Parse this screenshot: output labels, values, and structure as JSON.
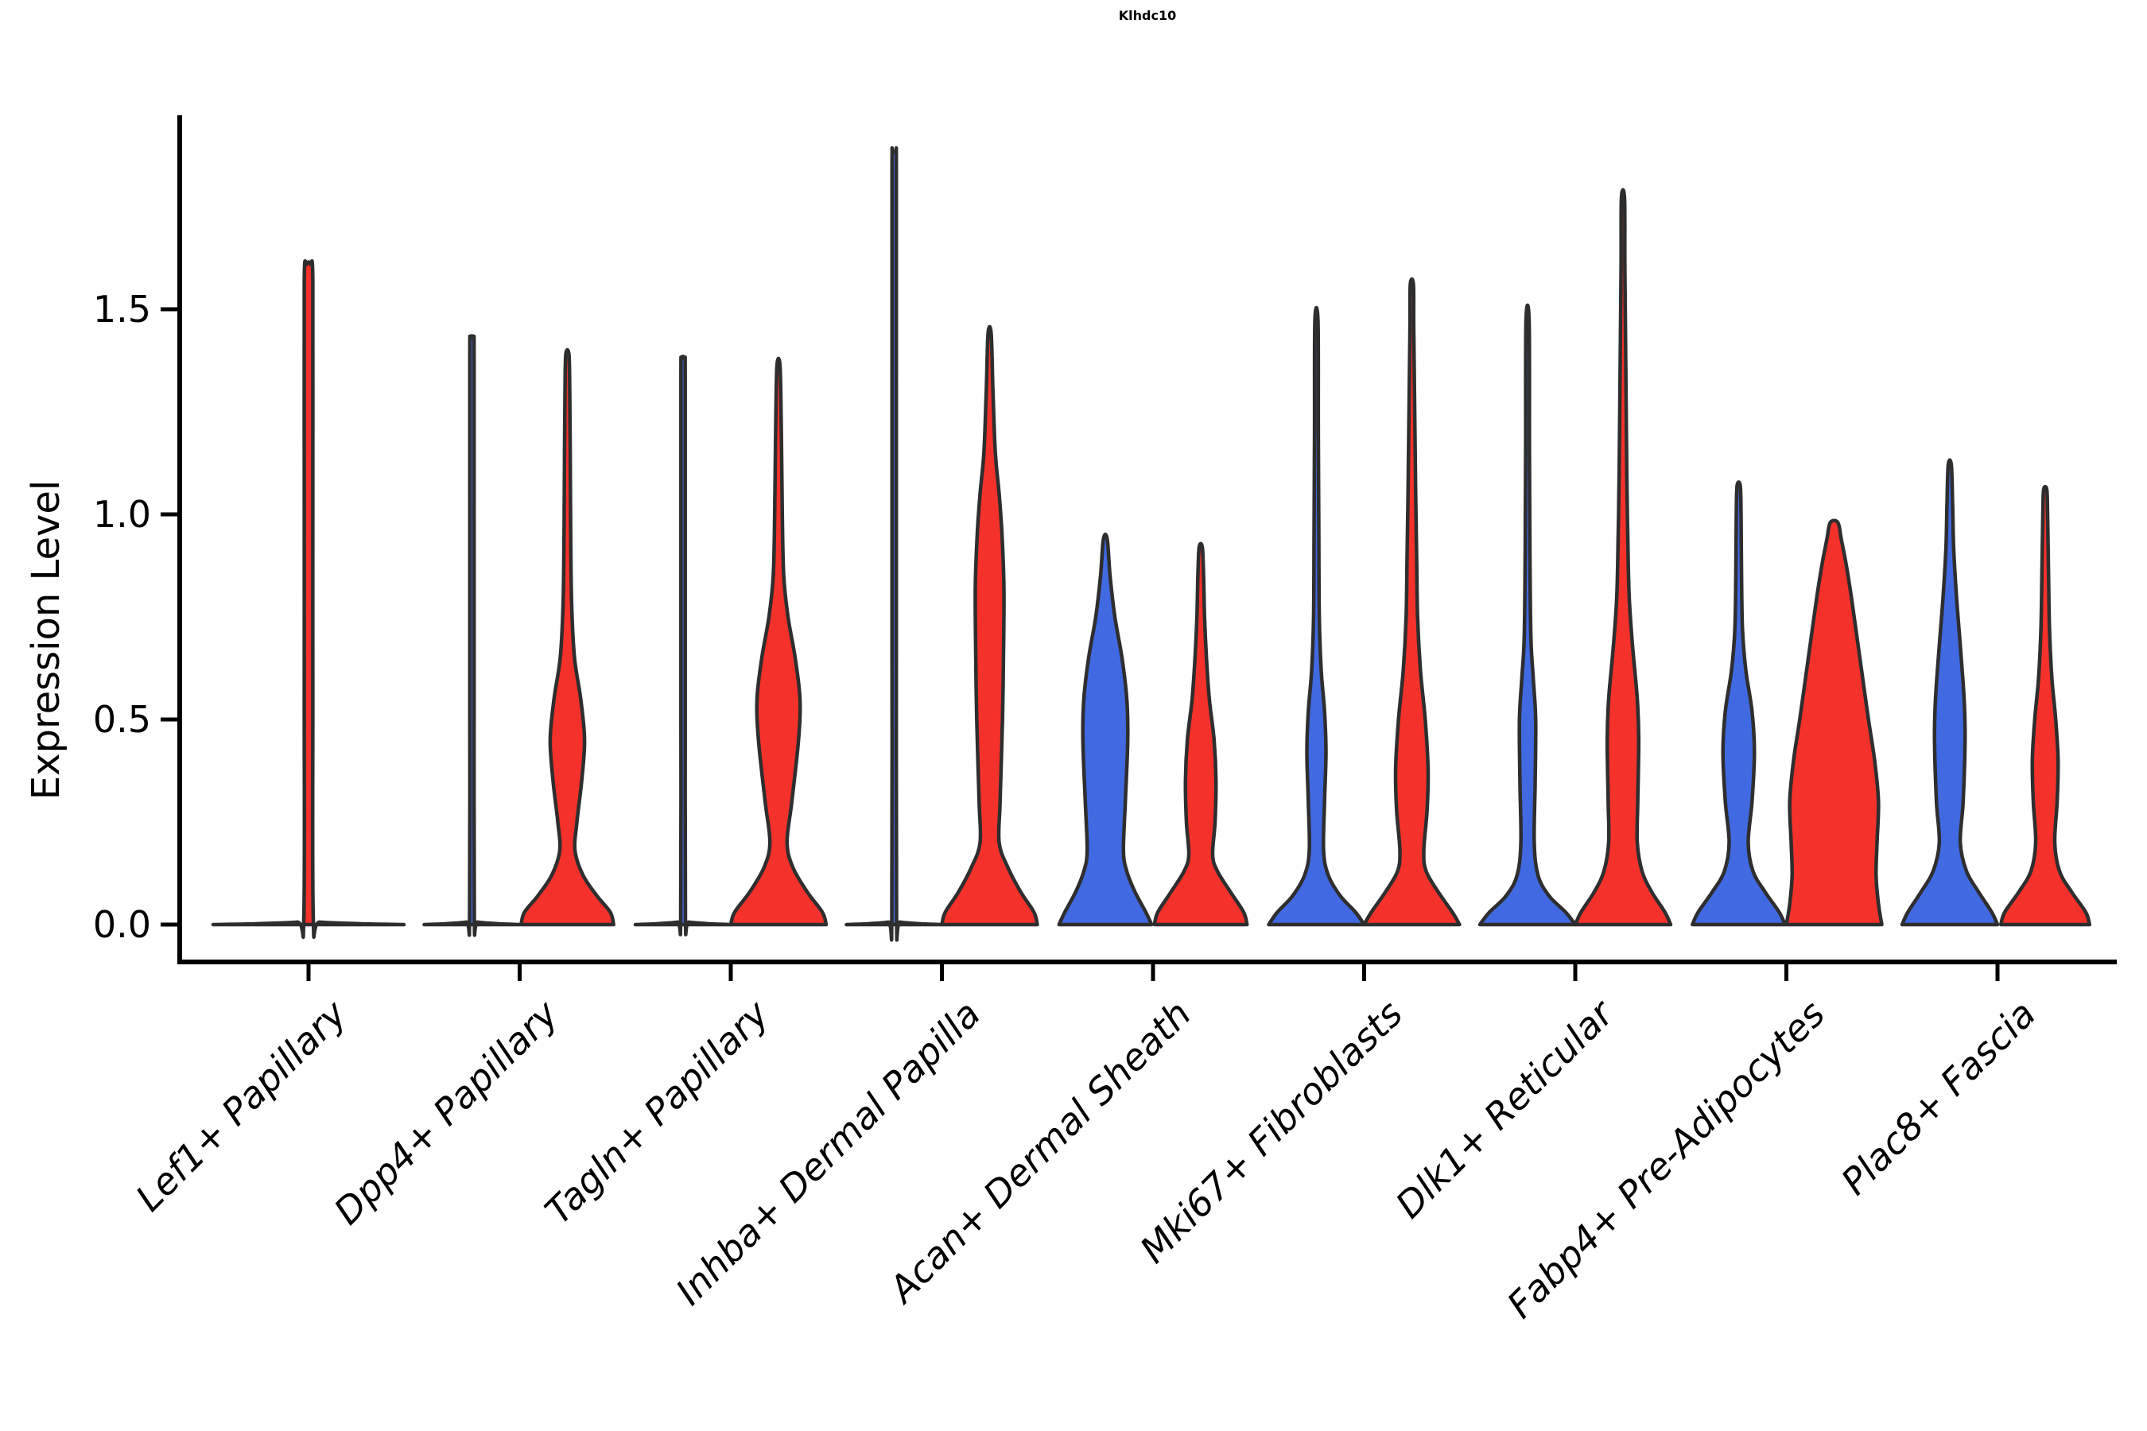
{
  "title": "Klhdc10",
  "axes": {
    "y_label": "Expression Level",
    "y_tick_labels": [
      "0.0",
      "0.5",
      "1.0",
      "1.5"
    ],
    "y_tick_values": [
      0.0,
      0.5,
      1.0,
      1.5
    ]
  },
  "colors": {
    "split_blue": "#4169E1",
    "split_red": "#F5312B",
    "violin_outline": "#2e2e2e",
    "axis_spine": "#000000",
    "text": "#000000",
    "background": "#ffffff"
  },
  "chart_data": {
    "type": "violin",
    "title": "Klhdc10",
    "xlabel": "",
    "ylabel": "Expression Level",
    "yticks": [
      0.0,
      0.5,
      1.0,
      1.5
    ],
    "ylim": [
      -0.09,
      1.97
    ],
    "grid": false,
    "legend": "none",
    "categories": [
      "Lef1+ Papillary",
      "Dpp4+ Papillary",
      "Tagln+ Papillary",
      "Inhba+ Dermal Papilla",
      "Acan+ Dermal Sheath",
      "Mki67+ Fibroblasts",
      "Dlk1+ Reticular",
      "Fabp4+ Pre-Adipocytes",
      "Plac8+ Fascia"
    ],
    "groups": [
      {
        "category": "Lef1+ Papillary",
        "violins": [
          {
            "split": "red",
            "color": "#F5312B",
            "max_expression": 1.61,
            "flat": true,
            "width": 2.0,
            "profile": []
          }
        ]
      },
      {
        "category": "Dpp4+ Papillary",
        "violins": [
          {
            "split": "blue",
            "color": "#4169E1",
            "max_expression": 1.43,
            "flat": true,
            "width": 1.0,
            "profile": []
          },
          {
            "split": "red",
            "color": "#F5312B",
            "max_expression": 1.39,
            "flat": false,
            "width": 1.0,
            "profile": [
              [
                0,
                0.97
              ],
              [
                0.03,
                0.9
              ],
              [
                0.07,
                0.62
              ],
              [
                0.12,
                0.33
              ],
              [
                0.18,
                0.16
              ],
              [
                0.25,
                0.2
              ],
              [
                0.35,
                0.3
              ],
              [
                0.45,
                0.36
              ],
              [
                0.55,
                0.28
              ],
              [
                0.65,
                0.15
              ],
              [
                0.78,
                0.09
              ],
              [
                0.95,
                0.07
              ],
              [
                1.15,
                0.06
              ],
              [
                1.3,
                0.05
              ],
              [
                1.39,
                0.02
              ]
            ]
          }
        ]
      },
      {
        "category": "Tagln+ Papillary",
        "violins": [
          {
            "split": "blue",
            "color": "#4169E1",
            "max_expression": 1.38,
            "flat": true,
            "width": 1.0,
            "profile": []
          },
          {
            "split": "red",
            "color": "#F5312B",
            "max_expression": 1.36,
            "flat": false,
            "width": 1.0,
            "profile": [
              [
                0,
                1.0
              ],
              [
                0.03,
                0.92
              ],
              [
                0.08,
                0.6
              ],
              [
                0.14,
                0.3
              ],
              [
                0.2,
                0.18
              ],
              [
                0.3,
                0.28
              ],
              [
                0.45,
                0.42
              ],
              [
                0.55,
                0.45
              ],
              [
                0.65,
                0.35
              ],
              [
                0.75,
                0.2
              ],
              [
                0.85,
                0.11
              ],
              [
                1.0,
                0.08
              ],
              [
                1.2,
                0.06
              ],
              [
                1.36,
                0.02
              ]
            ]
          }
        ]
      },
      {
        "category": "Inhba+ Dermal Papilla",
        "violins": [
          {
            "split": "blue",
            "color": "#4169E1",
            "max_expression": 1.88,
            "flat": true,
            "width": 1.0,
            "profile": []
          },
          {
            "split": "red",
            "color": "#F5312B",
            "max_expression": 1.44,
            "flat": false,
            "width": 1.0,
            "profile": [
              [
                0,
                1.0
              ],
              [
                0.03,
                0.93
              ],
              [
                0.08,
                0.65
              ],
              [
                0.14,
                0.38
              ],
              [
                0.2,
                0.2
              ],
              [
                0.3,
                0.22
              ],
              [
                0.5,
                0.27
              ],
              [
                0.65,
                0.29
              ],
              [
                0.82,
                0.3
              ],
              [
                0.95,
                0.26
              ],
              [
                1.05,
                0.2
              ],
              [
                1.15,
                0.12
              ],
              [
                1.3,
                0.07
              ],
              [
                1.44,
                0.02
              ]
            ]
          }
        ]
      },
      {
        "category": "Acan+ Dermal Sheath",
        "violins": [
          {
            "split": "blue",
            "color": "#4169E1",
            "max_expression": 0.94,
            "flat": false,
            "width": 1.0,
            "profile": [
              [
                0,
                0.97
              ],
              [
                0.03,
                0.85
              ],
              [
                0.08,
                0.62
              ],
              [
                0.13,
                0.45
              ],
              [
                0.18,
                0.38
              ],
              [
                0.3,
                0.42
              ],
              [
                0.45,
                0.47
              ],
              [
                0.55,
                0.45
              ],
              [
                0.65,
                0.35
              ],
              [
                0.75,
                0.2
              ],
              [
                0.85,
                0.1
              ],
              [
                0.94,
                0.04
              ]
            ]
          },
          {
            "split": "red",
            "color": "#F5312B",
            "max_expression": 0.92,
            "flat": false,
            "width": 1.0,
            "profile": [
              [
                0,
                0.97
              ],
              [
                0.03,
                0.9
              ],
              [
                0.08,
                0.62
              ],
              [
                0.13,
                0.35
              ],
              [
                0.17,
                0.25
              ],
              [
                0.25,
                0.3
              ],
              [
                0.35,
                0.32
              ],
              [
                0.45,
                0.28
              ],
              [
                0.55,
                0.18
              ],
              [
                0.65,
                0.12
              ],
              [
                0.75,
                0.08
              ],
              [
                0.85,
                0.06
              ],
              [
                0.92,
                0.03
              ]
            ]
          }
        ]
      },
      {
        "category": "Mki67+ Fibroblasts",
        "violins": [
          {
            "split": "blue",
            "color": "#4169E1",
            "max_expression": 1.47,
            "flat": false,
            "width": 1.0,
            "profile": [
              [
                0,
                1.0
              ],
              [
                0.03,
                0.82
              ],
              [
                0.07,
                0.5
              ],
              [
                0.12,
                0.25
              ],
              [
                0.18,
                0.15
              ],
              [
                0.3,
                0.17
              ],
              [
                0.42,
                0.2
              ],
              [
                0.52,
                0.17
              ],
              [
                0.62,
                0.1
              ],
              [
                0.75,
                0.06
              ],
              [
                0.95,
                0.05
              ],
              [
                1.2,
                0.04
              ],
              [
                1.47,
                0.02
              ]
            ]
          },
          {
            "split": "red",
            "color": "#F5312B",
            "max_expression": 1.56,
            "flat": false,
            "width": 1.0,
            "profile": [
              [
                0,
                1.0
              ],
              [
                0.03,
                0.85
              ],
              [
                0.08,
                0.55
              ],
              [
                0.13,
                0.3
              ],
              [
                0.18,
                0.25
              ],
              [
                0.28,
                0.32
              ],
              [
                0.38,
                0.34
              ],
              [
                0.5,
                0.28
              ],
              [
                0.62,
                0.18
              ],
              [
                0.75,
                0.12
              ],
              [
                0.9,
                0.1
              ],
              [
                1.05,
                0.08
              ],
              [
                1.25,
                0.06
              ],
              [
                1.45,
                0.04
              ],
              [
                1.56,
                0.02
              ]
            ]
          }
        ]
      },
      {
        "category": "Dlk1+ Reticular",
        "violins": [
          {
            "split": "blue",
            "color": "#4169E1",
            "max_expression": 1.47,
            "flat": false,
            "width": 1.0,
            "profile": [
              [
                0,
                1.0
              ],
              [
                0.03,
                0.8
              ],
              [
                0.07,
                0.45
              ],
              [
                0.12,
                0.22
              ],
              [
                0.2,
                0.14
              ],
              [
                0.35,
                0.16
              ],
              [
                0.5,
                0.17
              ],
              [
                0.6,
                0.12
              ],
              [
                0.7,
                0.07
              ],
              [
                0.9,
                0.05
              ],
              [
                1.15,
                0.04
              ],
              [
                1.47,
                0.02
              ]
            ]
          },
          {
            "split": "red",
            "color": "#F5312B",
            "max_expression": 1.77,
            "flat": false,
            "width": 1.0,
            "profile": [
              [
                0,
                1.0
              ],
              [
                0.03,
                0.88
              ],
              [
                0.08,
                0.6
              ],
              [
                0.13,
                0.4
              ],
              [
                0.2,
                0.3
              ],
              [
                0.3,
                0.31
              ],
              [
                0.45,
                0.33
              ],
              [
                0.55,
                0.3
              ],
              [
                0.68,
                0.2
              ],
              [
                0.8,
                0.13
              ],
              [
                0.95,
                0.1
              ],
              [
                1.1,
                0.08
              ],
              [
                1.35,
                0.06
              ],
              [
                1.6,
                0.04
              ],
              [
                1.77,
                0.02
              ]
            ]
          }
        ]
      },
      {
        "category": "Fabp4+ Pre-Adipocytes",
        "violins": [
          {
            "split": "blue",
            "color": "#4169E1",
            "max_expression": 1.07,
            "flat": false,
            "width": 1.0,
            "profile": [
              [
                0,
                0.97
              ],
              [
                0.03,
                0.85
              ],
              [
                0.08,
                0.55
              ],
              [
                0.13,
                0.3
              ],
              [
                0.2,
                0.2
              ],
              [
                0.3,
                0.28
              ],
              [
                0.42,
                0.33
              ],
              [
                0.52,
                0.28
              ],
              [
                0.62,
                0.15
              ],
              [
                0.72,
                0.08
              ],
              [
                0.85,
                0.06
              ],
              [
                1.0,
                0.05
              ],
              [
                1.07,
                0.03
              ]
            ]
          },
          {
            "split": "red",
            "color": "#F5312B",
            "max_expression": 0.98,
            "flat": false,
            "width": 1.0,
            "profile": [
              [
                0,
                1.0
              ],
              [
                0.05,
                0.93
              ],
              [
                0.12,
                0.88
              ],
              [
                0.2,
                0.9
              ],
              [
                0.3,
                0.93
              ],
              [
                0.4,
                0.85
              ],
              [
                0.5,
                0.72
              ],
              [
                0.6,
                0.6
              ],
              [
                0.7,
                0.48
              ],
              [
                0.8,
                0.36
              ],
              [
                0.88,
                0.25
              ],
              [
                0.94,
                0.15
              ],
              [
                0.98,
                0.08
              ]
            ]
          }
        ]
      },
      {
        "category": "Plac8+ Fascia",
        "violins": [
          {
            "split": "blue",
            "color": "#4169E1",
            "max_expression": 1.12,
            "flat": false,
            "width": 1.0,
            "profile": [
              [
                0,
                1.0
              ],
              [
                0.03,
                0.88
              ],
              [
                0.08,
                0.6
              ],
              [
                0.13,
                0.35
              ],
              [
                0.2,
                0.22
              ],
              [
                0.3,
                0.28
              ],
              [
                0.45,
                0.32
              ],
              [
                0.55,
                0.3
              ],
              [
                0.68,
                0.22
              ],
              [
                0.8,
                0.14
              ],
              [
                0.92,
                0.08
              ],
              [
                1.02,
                0.06
              ],
              [
                1.12,
                0.03
              ]
            ]
          },
          {
            "split": "red",
            "color": "#F5312B",
            "max_expression": 1.06,
            "flat": false,
            "width": 1.0,
            "profile": [
              [
                0,
                0.93
              ],
              [
                0.03,
                0.85
              ],
              [
                0.08,
                0.55
              ],
              [
                0.13,
                0.3
              ],
              [
                0.2,
                0.2
              ],
              [
                0.3,
                0.25
              ],
              [
                0.4,
                0.27
              ],
              [
                0.5,
                0.22
              ],
              [
                0.6,
                0.14
              ],
              [
                0.72,
                0.09
              ],
              [
                0.85,
                0.07
              ],
              [
                1.0,
                0.05
              ],
              [
                1.06,
                0.02
              ]
            ]
          }
        ]
      }
    ]
  }
}
